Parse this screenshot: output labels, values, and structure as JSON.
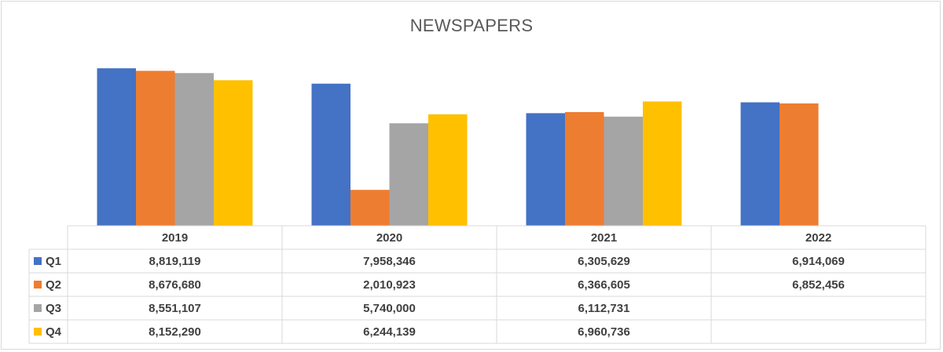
{
  "chart_data": {
    "type": "bar",
    "title": "NEWSPAPERS",
    "categories": [
      "2019",
      "2020",
      "2021",
      "2022"
    ],
    "series": [
      {
        "name": "Q1",
        "color": "#4472c4",
        "values": [
          8819119,
          7958346,
          6305629,
          6914069
        ],
        "labels": [
          "8,819,119",
          "7,958,346",
          "6,305,629",
          "6,914,069"
        ]
      },
      {
        "name": "Q2",
        "color": "#ed7d31",
        "values": [
          8676680,
          2010923,
          6366605,
          6852456
        ],
        "labels": [
          "8,676,680",
          "2,010,923",
          "6,366,605",
          "6,852,456"
        ]
      },
      {
        "name": "Q3",
        "color": "#a5a5a5",
        "values": [
          8551107,
          5740000,
          6112731,
          null
        ],
        "labels": [
          "8,551,107",
          "5,740,000",
          "6,112,731",
          ""
        ]
      },
      {
        "name": "Q4",
        "color": "#ffc000",
        "values": [
          8152290,
          6244139,
          6960736,
          null
        ],
        "labels": [
          "8,152,290",
          "6,244,139",
          "6,960,736",
          ""
        ]
      }
    ],
    "ylim": [
      0,
      9000000
    ],
    "legend": "data-table",
    "grid": false
  }
}
